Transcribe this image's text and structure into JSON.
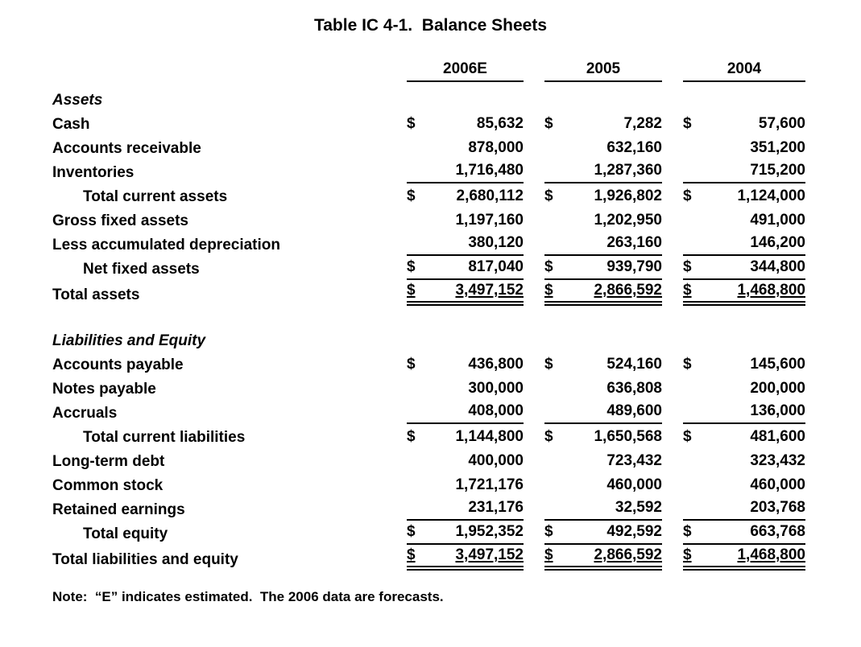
{
  "title": "Table IC 4-1.  Balance Sheets",
  "columns": [
    "2006E",
    "2005",
    "2004"
  ],
  "sections": [
    {
      "id": "assets",
      "heading": "Assets",
      "rows": [
        {
          "label": "Cash",
          "indent": false,
          "dollar": true,
          "underline": "none",
          "values": [
            "85,632",
            "7,282",
            "57,600"
          ]
        },
        {
          "label": "Accounts receivable",
          "indent": false,
          "dollar": false,
          "underline": "none",
          "values": [
            "878,000",
            "632,160",
            "351,200"
          ]
        },
        {
          "label": "Inventories",
          "indent": false,
          "dollar": false,
          "underline": "single",
          "values": [
            "1,716,480",
            "1,287,360",
            "715,200"
          ]
        },
        {
          "label": "Total current assets",
          "indent": true,
          "dollar": true,
          "underline": "none",
          "values": [
            "2,680,112",
            "1,926,802",
            "1,124,000"
          ]
        },
        {
          "label": "Gross fixed assets",
          "indent": false,
          "dollar": false,
          "underline": "none",
          "values": [
            "1,197,160",
            "1,202,950",
            "491,000"
          ]
        },
        {
          "label": "Less accumulated depreciation",
          "indent": false,
          "dollar": false,
          "underline": "single",
          "values": [
            "380,120",
            "263,160",
            "146,200"
          ]
        },
        {
          "label": "Net fixed assets",
          "indent": true,
          "dollar": true,
          "underline": "single",
          "values": [
            "817,040",
            "939,790",
            "344,800"
          ]
        },
        {
          "label": "Total assets",
          "indent": false,
          "dollar": true,
          "underline": "double",
          "values": [
            "3,497,152",
            "2,866,592",
            "1,468,800"
          ]
        }
      ]
    },
    {
      "id": "liabilities",
      "heading": "Liabilities and Equity",
      "rows": [
        {
          "label": "Accounts payable",
          "indent": false,
          "dollar": true,
          "underline": "none",
          "values": [
            "436,800",
            "524,160",
            "145,600"
          ]
        },
        {
          "label": "Notes payable",
          "indent": false,
          "dollar": false,
          "underline": "none",
          "values": [
            "300,000",
            "636,808",
            "200,000"
          ]
        },
        {
          "label": "Accruals",
          "indent": false,
          "dollar": false,
          "underline": "single",
          "values": [
            "408,000",
            "489,600",
            "136,000"
          ]
        },
        {
          "label": "Total current liabilities",
          "indent": true,
          "dollar": true,
          "underline": "none",
          "values": [
            "1,144,800",
            "1,650,568",
            "481,600"
          ]
        },
        {
          "label": "Long-term debt",
          "indent": false,
          "dollar": false,
          "underline": "none",
          "values": [
            "400,000",
            "723,432",
            "323,432"
          ]
        },
        {
          "label": "Common stock",
          "indent": false,
          "dollar": false,
          "underline": "none",
          "values": [
            "1,721,176",
            "460,000",
            "460,000"
          ]
        },
        {
          "label": "Retained earnings",
          "indent": false,
          "dollar": false,
          "underline": "single",
          "values": [
            "231,176",
            "32,592",
            "203,768"
          ]
        },
        {
          "label": "Total equity",
          "indent": true,
          "dollar": true,
          "underline": "single",
          "values": [
            "1,952,352",
            "492,592",
            "663,768"
          ]
        },
        {
          "label": "Total liabilities and equity",
          "indent": false,
          "dollar": true,
          "underline": "double",
          "values": [
            "3,497,152",
            "2,866,592",
            "1,468,800"
          ]
        }
      ]
    }
  ],
  "dollar_sign": "$",
  "note": "Note:  “E” indicates estimated.  The 2006 data are forecasts."
}
